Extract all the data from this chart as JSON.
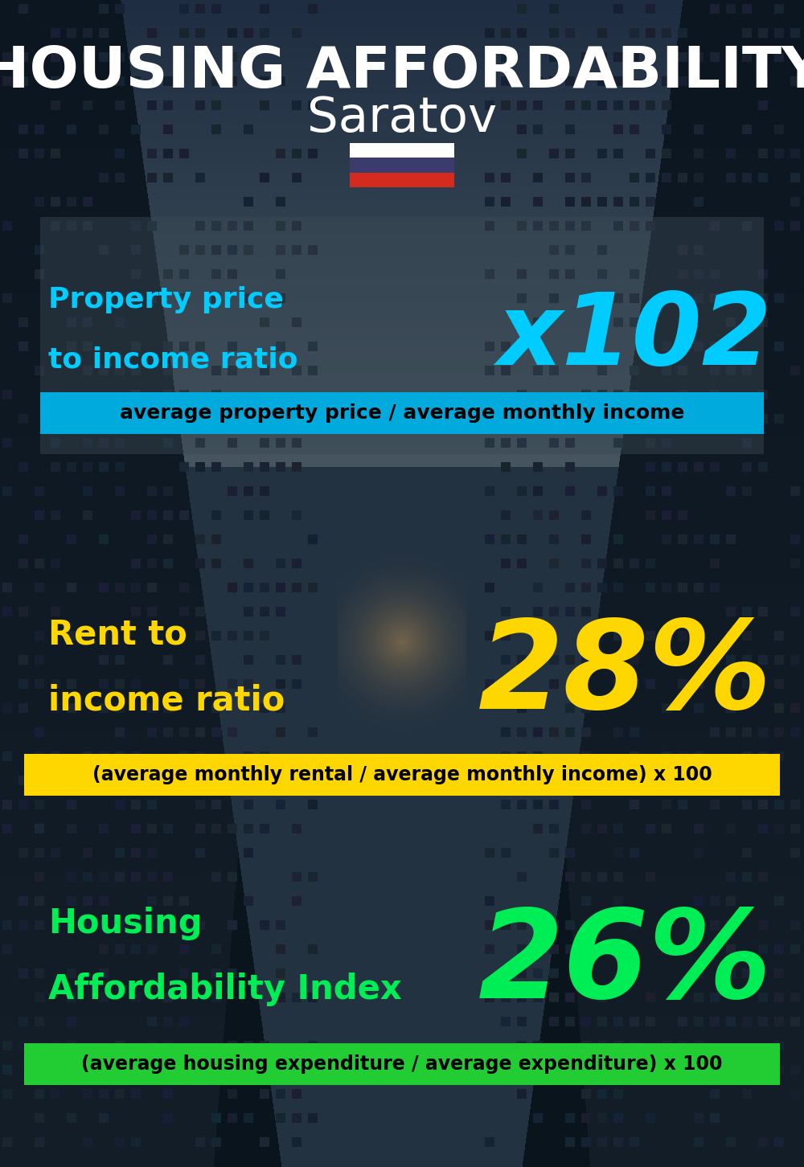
{
  "title_line1": "HOUSING AFFORDABILITY",
  "title_line2": "Saratov",
  "flag_colors": [
    "#FFFFFF",
    "#3C3B6E",
    "#D52B1E"
  ],
  "section1_label_line1": "Property price",
  "section1_label_line2": "to income ratio",
  "section1_value": "x102",
  "section1_label_color": "#00CCFF",
  "section1_value_color": "#00CCFF",
  "section1_banner_text": "average property price / average monthly income",
  "section1_banner_bg": "#00AADD",
  "section2_label_line1": "Rent to",
  "section2_label_line2": "income ratio",
  "section2_value": "28%",
  "section2_label_color": "#FFD700",
  "section2_value_color": "#FFD700",
  "section2_banner_text": "(average monthly rental / average monthly income) x 100",
  "section2_banner_bg": "#FFD700",
  "section3_label_line1": "Housing",
  "section3_label_line2": "Affordability Index",
  "section3_value": "26%",
  "section3_label_color": "#00EE55",
  "section3_value_color": "#00EE55",
  "section3_banner_text": "(average housing expenditure / average expenditure) x 100",
  "section3_banner_bg": "#22CC33"
}
